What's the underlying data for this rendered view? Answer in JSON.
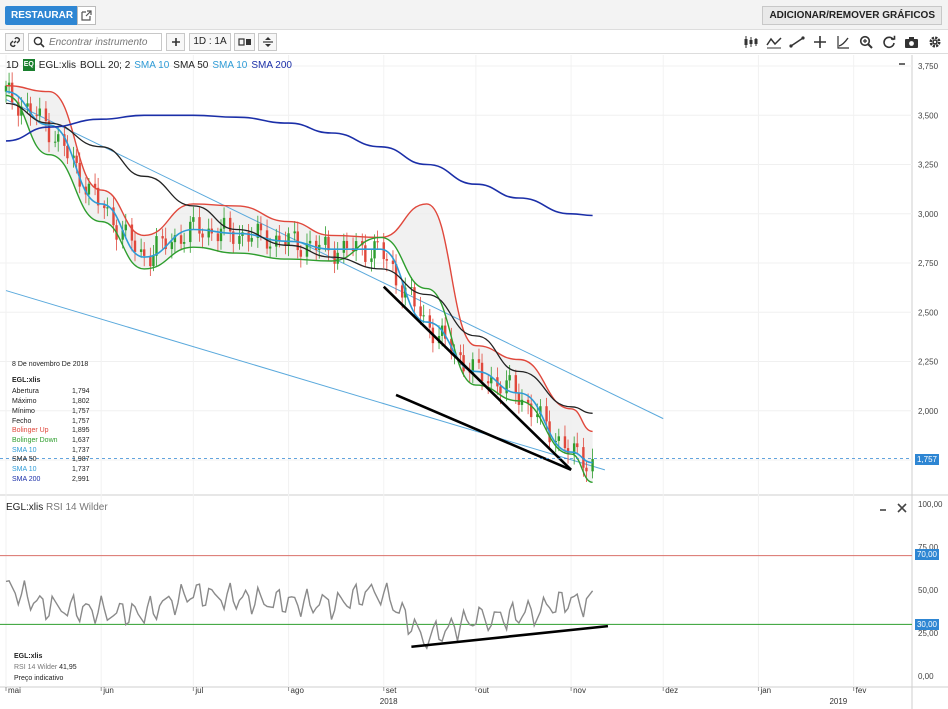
{
  "header": {
    "restore_label": "RESTAURAR",
    "add_remove_label": "ADICIONAR/REMOVER GRÁFICOS"
  },
  "toolbar": {
    "search_placeholder": "Encontrar instrumento",
    "range_label": "1D : 1A"
  },
  "main_legend": {
    "interval": "1D",
    "badge": "EQ",
    "symbol": "EGL:xlis",
    "boll": "BOLL 20; 2",
    "sma10": "SMA 10",
    "sma50": "SMA 50",
    "sma10b": "SMA 10",
    "sma200": "SMA 200"
  },
  "rsi_legend": {
    "symbol": "EGL:xlis",
    "indicator": "RSI 14 Wilder"
  },
  "info_panel": {
    "date": "8 De novembro De 2018",
    "symbol": "EGL:xlis",
    "rows": [
      {
        "label": "Abertura",
        "value": "1,794",
        "color": "#222222"
      },
      {
        "label": "Máximo",
        "value": "1,802",
        "color": "#222222"
      },
      {
        "label": "Mínimo",
        "value": "1,757",
        "color": "#222222"
      },
      {
        "label": "Fecho",
        "value": "1,757",
        "color": "#222222"
      },
      {
        "label": "Bolinger Up",
        "value": "1,895",
        "color": "#e0483c"
      },
      {
        "label": "Bolinger Down",
        "value": "1,637",
        "color": "#2e9e2e"
      },
      {
        "label": "SMA 10",
        "value": "1,737",
        "color": "#2e9bd6"
      },
      {
        "label": "SMA 50",
        "value": "1,987",
        "color": "#222222"
      },
      {
        "label": "SMA 10",
        "value": "1,737",
        "color": "#2e9bd6"
      },
      {
        "label": "SMA 200",
        "value": "2,991",
        "color": "#1b2fa8"
      }
    ]
  },
  "rsi_info": {
    "symbol": "EGL:xlis",
    "line": "RSI 14 Wilder",
    "value": "41,95",
    "note": "Preço indicativo"
  },
  "price_tags": {
    "last": "1,757",
    "rsi70": "70,00",
    "rsi30": "30,00"
  },
  "colors": {
    "accent": "#2e86d3",
    "boll_up": "#e0483c",
    "boll_down": "#2e9e2e",
    "sma10": "#2e9bd6",
    "sma50": "#222222",
    "sma200": "#1b2fa8",
    "candle_up": "#2e9e2e",
    "candle_down": "#e0483c"
  },
  "chart_data": [
    {
      "type": "line",
      "title": "",
      "ylim": [
        1500,
        3800
      ],
      "y_ticks": [
        "3,750",
        "3,500",
        "3,250",
        "3,000",
        "2,750",
        "2,500",
        "2,250",
        "2,000",
        "1,750"
      ],
      "x_tick_labels": [
        "mai",
        "jun",
        "jul",
        "ago",
        "set",
        "out",
        "nov",
        "dez",
        "jan",
        "fev"
      ],
      "year_labels": [
        "2018",
        "2019"
      ],
      "x": [
        "2018-05-01",
        "2018-05-15",
        "2018-06-01",
        "2018-06-15",
        "2018-07-01",
        "2018-07-15",
        "2018-08-01",
        "2018-08-15",
        "2018-08-31",
        "2018-09-15",
        "2018-10-01",
        "2018-10-15",
        "2018-11-01",
        "2018-11-08"
      ],
      "series": [
        {
          "name": "BOLL 20; 2",
          "values": [
            3650,
            3620,
            3120,
            2890,
            3050,
            3040,
            2960,
            2890,
            2880,
            3050,
            2330,
            2260,
            2010,
            1895
          ]
        },
        {
          "name": "BOLL 20; 2",
          "values": [
            3600,
            3300,
            2960,
            2720,
            2830,
            2800,
            2770,
            2760,
            2880,
            2620,
            2130,
            2050,
            1780,
            1637
          ]
        },
        {
          "name": "SMA 10",
          "values": [
            3620,
            3450,
            3050,
            2780,
            2920,
            2900,
            2860,
            2820,
            2820,
            2450,
            2200,
            2090,
            1790,
            1737
          ]
        },
        {
          "name": "SMA 50",
          "values": [
            3560,
            3460,
            3340,
            3190,
            3040,
            2920,
            2840,
            2780,
            2720,
            2590,
            2380,
            2200,
            2020,
            1987
          ]
        },
        {
          "name": "SMA 200",
          "values": [
            3370,
            3440,
            3480,
            3500,
            3500,
            3490,
            3460,
            3410,
            3340,
            3250,
            3150,
            3080,
            3000,
            2991
          ]
        }
      ],
      "ohlc_last": {
        "open": 1.794,
        "high": 1.802,
        "low": 1.757,
        "close": 1.757
      }
    },
    {
      "type": "line",
      "title": "",
      "ylim": [
        0,
        100
      ],
      "y_ticks": [
        "100,00",
        "75,00",
        "50,00",
        "25,00",
        "0,00"
      ],
      "x": [
        "2018-05-01",
        "2018-05-15",
        "2018-06-01",
        "2018-06-15",
        "2018-07-01",
        "2018-07-15",
        "2018-08-01",
        "2018-08-15",
        "2018-08-31",
        "2018-09-15",
        "2018-10-01",
        "2018-10-15",
        "2018-11-01",
        "2018-11-08"
      ],
      "series": [
        {
          "name": "RSI 14 Wilder",
          "values": [
            52,
            40,
            38,
            36,
            48,
            45,
            43,
            41,
            50,
            22,
            33,
            35,
            44,
            41.95
          ]
        }
      ],
      "levels": [
        70,
        30
      ]
    }
  ]
}
